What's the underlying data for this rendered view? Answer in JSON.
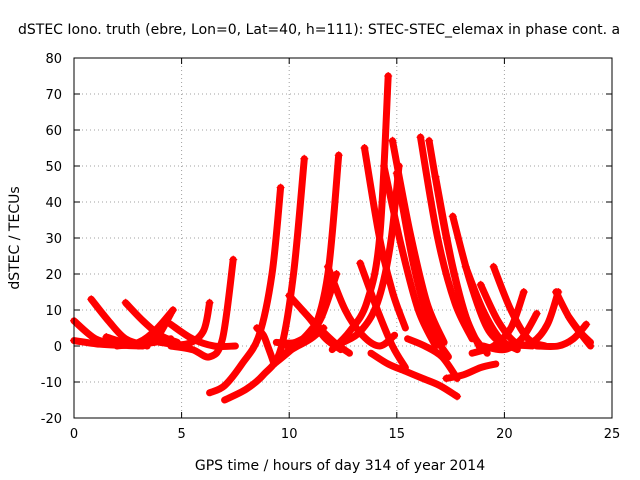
{
  "chart_data": {
    "type": "scatter",
    "title": "dSTEC Iono. truth (ebre, Lon=0, Lat=40, h=111): STEC-STEC_elemax in phase cont. a",
    "xlabel": "GPS time / hours of day 314 of year 2014",
    "ylabel": "dSTEC  / TECUs",
    "xlim": [
      0,
      25
    ],
    "ylim": [
      -20,
      80
    ],
    "xticks": [
      0,
      5,
      10,
      15,
      20,
      25
    ],
    "yticks": [
      -20,
      -10,
      0,
      10,
      20,
      30,
      40,
      50,
      60,
      70,
      80
    ],
    "grid": true,
    "marker": "+",
    "color": "#ff0000",
    "series": [
      {
        "x": [
          0.0,
          1.0,
          2.0
        ],
        "y": [
          7,
          2,
          0.5
        ]
      },
      {
        "x": [
          0.0,
          1.2,
          2.2,
          3.2
        ],
        "y": [
          1.5,
          0.5,
          0.2,
          0
        ]
      },
      {
        "x": [
          0.8,
          1.6,
          2.4,
          3.4
        ],
        "y": [
          13,
          7,
          2,
          0
        ]
      },
      {
        "x": [
          1.5,
          2.5,
          3.5,
          4.5
        ],
        "y": [
          2.5,
          0.8,
          0.8,
          2
        ]
      },
      {
        "x": [
          2.4,
          3.2,
          4.0,
          4.8
        ],
        "y": [
          12,
          7,
          3,
          1
        ]
      },
      {
        "x": [
          2.0,
          3.0,
          3.8,
          4.6
        ],
        "y": [
          0,
          1,
          4.5,
          10
        ]
      },
      {
        "x": [
          3.0,
          3.8,
          4.5
        ],
        "y": [
          0,
          2,
          9
        ]
      },
      {
        "x": [
          4.5,
          5.5,
          6.5,
          7.5
        ],
        "y": [
          6,
          2,
          0,
          0
        ]
      },
      {
        "x": [
          4.0,
          5.2,
          6.0,
          6.3
        ],
        "y": [
          1,
          0.5,
          4,
          12
        ]
      },
      {
        "x": [
          4.5,
          5.5,
          6.3,
          6.9,
          7.4
        ],
        "y": [
          0,
          -1,
          -3,
          2,
          24
        ]
      },
      {
        "x": [
          6.3,
          7.0,
          7.8,
          8.6,
          9.2,
          9.6
        ],
        "y": [
          -13,
          -11,
          -5,
          3,
          20,
          44
        ]
      },
      {
        "x": [
          7.0,
          8.0,
          8.8,
          9.6,
          10.2,
          10.7
        ],
        "y": [
          -15,
          -12,
          -8,
          -1,
          20,
          52
        ]
      },
      {
        "x": [
          8.5,
          8.8,
          9.0,
          9.3
        ],
        "y": [
          5,
          3,
          0,
          -5
        ]
      },
      {
        "x": [
          9.4,
          10.3,
          11.1,
          11.8,
          12.3
        ],
        "y": [
          1,
          1,
          4,
          20,
          53
        ]
      },
      {
        "x": [
          9.3,
          10.1,
          10.8,
          11.5
        ],
        "y": [
          -5,
          -1,
          3,
          8
        ]
      },
      {
        "x": [
          9.8,
          10.4,
          11.0,
          11.6
        ],
        "y": [
          -2,
          0,
          2,
          5
        ]
      },
      {
        "x": [
          10.0,
          10.9,
          11.7,
          12.4
        ],
        "y": [
          14,
          8,
          2,
          -1
        ]
      },
      {
        "x": [
          9.9,
          10.9,
          11.5,
          12.2
        ],
        "y": [
          0,
          3,
          8,
          20
        ]
      },
      {
        "x": [
          10.6,
          11.4,
          12.1,
          12.8
        ],
        "y": [
          10,
          5,
          1,
          -2
        ]
      },
      {
        "x": [
          11.8,
          12.6,
          13.4,
          14.2,
          14.9
        ],
        "y": [
          22,
          10,
          3,
          0,
          3
        ]
      },
      {
        "x": [
          12.0,
          12.8,
          13.6,
          14.2,
          14.6
        ],
        "y": [
          -1,
          4,
          12,
          30,
          75
        ]
      },
      {
        "x": [
          12.5,
          13.3,
          14.1,
          14.7,
          15.1
        ],
        "y": [
          1,
          4,
          12,
          28,
          50
        ]
      },
      {
        "x": [
          13.3,
          14.1,
          14.8,
          15.4
        ],
        "y": [
          23,
          10,
          0,
          -6
        ]
      },
      {
        "x": [
          13.5,
          14.2,
          14.8,
          15.4
        ],
        "y": [
          55,
          30,
          15,
          5
        ]
      },
      {
        "x": [
          14.4,
          15.2,
          16.0,
          16.8
        ],
        "y": [
          50,
          28,
          10,
          0
        ]
      },
      {
        "x": [
          14.8,
          15.6,
          16.4,
          17.2
        ],
        "y": [
          57,
          32,
          12,
          1
        ]
      },
      {
        "x": [
          15.0,
          15.8,
          16.6,
          17.4
        ],
        "y": [
          48,
          22,
          5,
          -3
        ]
      },
      {
        "x": [
          13.8,
          14.6,
          15.4,
          16.2,
          17.0,
          17.8
        ],
        "y": [
          -2,
          -5,
          -7,
          -9,
          -11,
          -14
        ]
      },
      {
        "x": [
          15.5,
          16.3,
          17.1,
          17.8
        ],
        "y": [
          2,
          0,
          -3,
          -9
        ]
      },
      {
        "x": [
          16.1,
          16.9,
          17.7,
          18.5
        ],
        "y": [
          58,
          30,
          12,
          2
        ]
      },
      {
        "x": [
          16.5,
          17.3,
          18.1,
          18.9
        ],
        "y": [
          57,
          30,
          10,
          -1
        ]
      },
      {
        "x": [
          16.8,
          17.6,
          18.4,
          19.2
        ],
        "y": [
          47,
          22,
          5,
          -2
        ]
      },
      {
        "x": [
          17.6,
          18.4,
          19.2,
          20.0
        ],
        "y": [
          36,
          18,
          5,
          0
        ]
      },
      {
        "x": [
          17.3,
          18.1,
          18.9,
          19.6
        ],
        "y": [
          -9,
          -8,
          -6,
          -5
        ]
      },
      {
        "x": [
          18.2,
          19.0,
          19.8,
          20.6
        ],
        "y": [
          22,
          10,
          2,
          -1
        ]
      },
      {
        "x": [
          19.5,
          20.3,
          21.1,
          21.9
        ],
        "y": [
          22,
          10,
          2,
          0
        ]
      },
      {
        "x": [
          18.9,
          19.7,
          20.5,
          21.3
        ],
        "y": [
          17,
          7,
          1,
          0
        ]
      },
      {
        "x": [
          18.5,
          19.5,
          20.3,
          20.9
        ],
        "y": [
          -2,
          0,
          5,
          15
        ]
      },
      {
        "x": [
          19.0,
          20.0,
          20.8,
          21.5
        ],
        "y": [
          0,
          -1,
          2,
          9
        ]
      },
      {
        "x": [
          20.5,
          21.3,
          22.0,
          22.5
        ],
        "y": [
          0,
          1,
          6,
          15
        ]
      },
      {
        "x": [
          22.4,
          23.0,
          23.6,
          24.0
        ],
        "y": [
          15,
          8,
          3,
          0
        ]
      },
      {
        "x": [
          21.5,
          22.5,
          23.2,
          23.8
        ],
        "y": [
          0,
          0,
          2,
          6
        ]
      },
      {
        "x": [
          23.0,
          23.5,
          24.0
        ],
        "y": [
          8,
          4,
          1
        ]
      }
    ]
  }
}
